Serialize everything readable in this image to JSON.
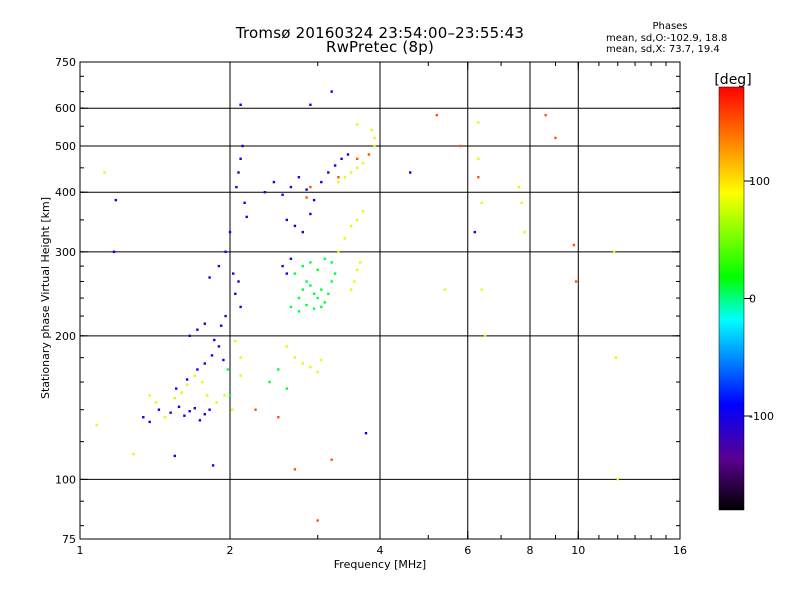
{
  "header": {
    "title_line1": "Tromsø 20160324 23:54:00–23:55:43",
    "title_line2": "RwPretec (8p)"
  },
  "phases_box": {
    "title": "Phases",
    "line_o": "mean, sd,O:-102.9, 18.8",
    "line_x": "mean, sd,X:  73.7, 19.4"
  },
  "chart_data": {
    "type": "scatter",
    "title": "Tromsø 20160324 23:54:00–23:55:43",
    "subtitle": "RwPretec (8p)",
    "xlabel": "Frequency [MHz]",
    "ylabel": "Stationary phase Virtual Height [km]",
    "x_scale": "log",
    "y_scale": "log",
    "xlim": [
      1,
      16
    ],
    "ylim": [
      75,
      750
    ],
    "x_ticks": [
      1,
      2,
      4,
      6,
      8,
      10,
      16
    ],
    "x_tick_labels": [
      "1",
      "2",
      "4",
      "6",
      "8",
      "10",
      "16"
    ],
    "x_grid": [
      2,
      4,
      6,
      8,
      10
    ],
    "y_ticks": [
      75,
      100,
      200,
      300,
      400,
      500,
      600,
      750
    ],
    "y_tick_labels": [
      "75",
      "100",
      "200",
      "300",
      "400",
      "500",
      "600",
      "750"
    ],
    "y_grid": [
      100,
      200,
      300,
      400,
      500,
      600
    ],
    "grid": true,
    "colorbar": {
      "label": "[deg]",
      "range": [
        -180,
        180
      ],
      "ticks": [
        100,
        0,
        -100
      ],
      "tick_labels": [
        "100",
        "0",
        "-100"
      ],
      "stops": [
        "#000000",
        "#5a0090",
        "#0000ff",
        "#00ffff",
        "#00ff00",
        "#ffff00",
        "#ff0000"
      ]
    },
    "series": [
      {
        "polarization": "O",
        "phase_deg": -100,
        "points": [
          [
            1.34,
            135
          ],
          [
            1.38,
            132
          ],
          [
            1.44,
            140
          ],
          [
            1.52,
            138
          ],
          [
            1.58,
            142
          ],
          [
            1.62,
            136
          ],
          [
            1.66,
            139
          ],
          [
            1.7,
            141
          ],
          [
            1.74,
            133
          ],
          [
            1.78,
            137
          ],
          [
            1.82,
            140
          ],
          [
            1.56,
            155
          ],
          [
            1.64,
            162
          ],
          [
            1.72,
            170
          ],
          [
            1.78,
            175
          ],
          [
            1.84,
            182
          ],
          [
            1.9,
            190
          ],
          [
            1.94,
            178
          ],
          [
            1.66,
            200
          ],
          [
            1.72,
            206
          ],
          [
            1.78,
            212
          ],
          [
            1.86,
            196
          ],
          [
            1.92,
            210
          ],
          [
            1.96,
            220
          ],
          [
            1.82,
            265
          ],
          [
            1.9,
            280
          ],
          [
            1.96,
            300
          ],
          [
            2.0,
            330
          ],
          [
            2.03,
            270
          ],
          [
            2.05,
            245
          ],
          [
            2.08,
            260
          ],
          [
            2.1,
            230
          ],
          [
            2.06,
            410
          ],
          [
            2.08,
            440
          ],
          [
            2.1,
            470
          ],
          [
            2.12,
            500
          ],
          [
            2.14,
            380
          ],
          [
            2.16,
            355
          ],
          [
            2.35,
            400
          ],
          [
            2.45,
            420
          ],
          [
            2.55,
            395
          ],
          [
            2.65,
            410
          ],
          [
            2.75,
            430
          ],
          [
            2.85,
            405
          ],
          [
            2.95,
            385
          ],
          [
            3.05,
            420
          ],
          [
            3.15,
            440
          ],
          [
            3.25,
            455
          ],
          [
            3.35,
            470
          ],
          [
            3.45,
            480
          ],
          [
            2.6,
            350
          ],
          [
            2.7,
            340
          ],
          [
            2.8,
            330
          ],
          [
            2.9,
            360
          ],
          [
            2.55,
            280
          ],
          [
            2.6,
            270
          ],
          [
            2.65,
            290
          ],
          [
            2.1,
            610
          ],
          [
            2.9,
            610
          ],
          [
            3.2,
            650
          ],
          [
            1.18,
            385
          ],
          [
            1.17,
            300
          ],
          [
            1.55,
            112
          ],
          [
            1.85,
            107
          ],
          [
            3.75,
            125
          ],
          [
            4.6,
            440
          ],
          [
            6.2,
            330
          ]
        ]
      },
      {
        "polarization": "X",
        "phase_deg": 80,
        "points": [
          [
            1.38,
            150
          ],
          [
            1.42,
            145
          ],
          [
            1.48,
            135
          ],
          [
            1.55,
            148
          ],
          [
            1.6,
            152
          ],
          [
            1.64,
            158
          ],
          [
            1.7,
            165
          ],
          [
            1.76,
            160
          ],
          [
            1.8,
            150
          ],
          [
            1.88,
            145
          ],
          [
            1.95,
            150
          ],
          [
            2.02,
            140
          ],
          [
            2.1,
            165
          ],
          [
            2.1,
            180
          ],
          [
            2.05,
            195
          ],
          [
            2.6,
            190
          ],
          [
            2.7,
            180
          ],
          [
            2.8,
            175
          ],
          [
            2.9,
            172
          ],
          [
            3.0,
            168
          ],
          [
            3.05,
            178
          ],
          [
            3.3,
            300
          ],
          [
            3.4,
            320
          ],
          [
            3.5,
            340
          ],
          [
            3.6,
            350
          ],
          [
            3.7,
            365
          ],
          [
            3.3,
            420
          ],
          [
            3.4,
            430
          ],
          [
            3.5,
            440
          ],
          [
            3.6,
            450
          ],
          [
            3.7,
            460
          ],
          [
            3.8,
            480
          ],
          [
            3.9,
            500
          ],
          [
            3.9,
            520
          ],
          [
            3.85,
            540
          ],
          [
            3.6,
            555
          ],
          [
            3.55,
            260
          ],
          [
            3.6,
            275
          ],
          [
            3.65,
            285
          ],
          [
            3.5,
            250
          ],
          [
            6.3,
            560
          ],
          [
            6.3,
            470
          ],
          [
            6.4,
            380
          ],
          [
            6.4,
            250
          ],
          [
            6.5,
            200
          ],
          [
            7.6,
            410
          ],
          [
            7.7,
            380
          ],
          [
            7.8,
            330
          ],
          [
            11.8,
            300
          ],
          [
            11.9,
            180
          ],
          [
            12.0,
            100
          ],
          [
            1.12,
            440
          ],
          [
            1.08,
            130
          ],
          [
            1.28,
            113
          ],
          [
            5.4,
            250
          ]
        ]
      },
      {
        "polarization": "X",
        "phase_deg": 10,
        "points": [
          [
            2.75,
            240
          ],
          [
            2.8,
            250
          ],
          [
            2.85,
            260
          ],
          [
            2.9,
            255
          ],
          [
            2.95,
            245
          ],
          [
            3.0,
            240
          ],
          [
            3.05,
            250
          ],
          [
            3.1,
            235
          ],
          [
            3.15,
            245
          ],
          [
            3.2,
            260
          ],
          [
            2.7,
            270
          ],
          [
            2.8,
            280
          ],
          [
            2.9,
            285
          ],
          [
            3.0,
            275
          ],
          [
            3.1,
            290
          ],
          [
            3.2,
            285
          ],
          [
            3.25,
            270
          ],
          [
            2.65,
            230
          ],
          [
            2.75,
            225
          ],
          [
            2.85,
            232
          ],
          [
            2.95,
            228
          ],
          [
            3.05,
            230
          ],
          [
            2.4,
            160
          ],
          [
            2.5,
            170
          ],
          [
            2.6,
            155
          ],
          [
            1.98,
            170
          ],
          [
            2.0,
            150
          ]
        ]
      },
      {
        "polarization": "X",
        "phase_deg": 150,
        "points": [
          [
            2.85,
            390
          ],
          [
            2.9,
            410
          ],
          [
            3.3,
            430
          ],
          [
            3.6,
            470
          ],
          [
            3.8,
            480
          ],
          [
            5.2,
            580
          ],
          [
            5.8,
            500
          ],
          [
            6.3,
            430
          ],
          [
            8.6,
            580
          ],
          [
            9.0,
            520
          ],
          [
            9.8,
            310
          ],
          [
            9.9,
            260
          ],
          [
            3.0,
            82
          ],
          [
            2.7,
            105
          ],
          [
            3.2,
            110
          ],
          [
            2.5,
            135
          ],
          [
            2.25,
            140
          ]
        ]
      }
    ]
  }
}
